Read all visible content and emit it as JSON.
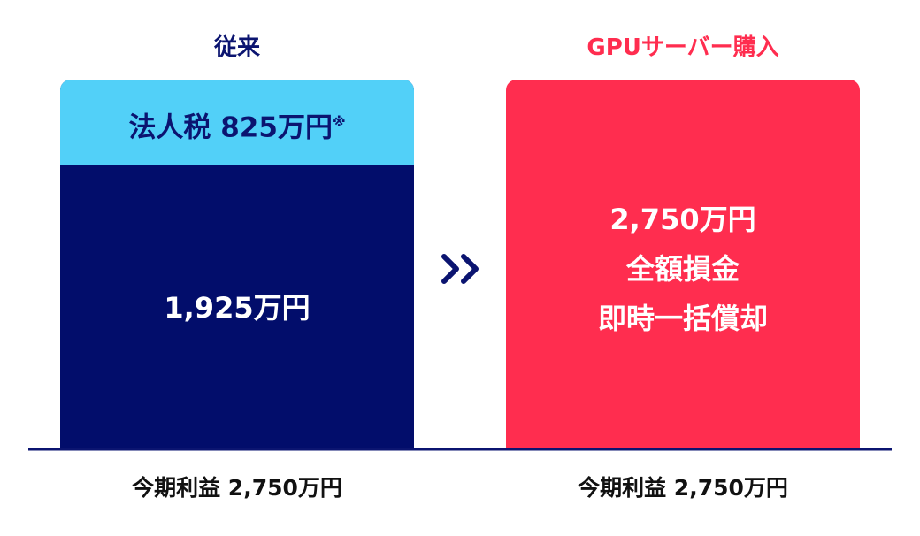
{
  "left": {
    "title": "従来",
    "tax_label": "法人税 825万円",
    "tax_note": "※",
    "amount": "1,925万円",
    "profit": "今期利益 2,750万円"
  },
  "right": {
    "title": "GPUサーバー購入",
    "lines": [
      "2,750万円",
      "全額損金",
      "即時一括償却"
    ],
    "profit": "今期利益 2,750万円"
  }
}
